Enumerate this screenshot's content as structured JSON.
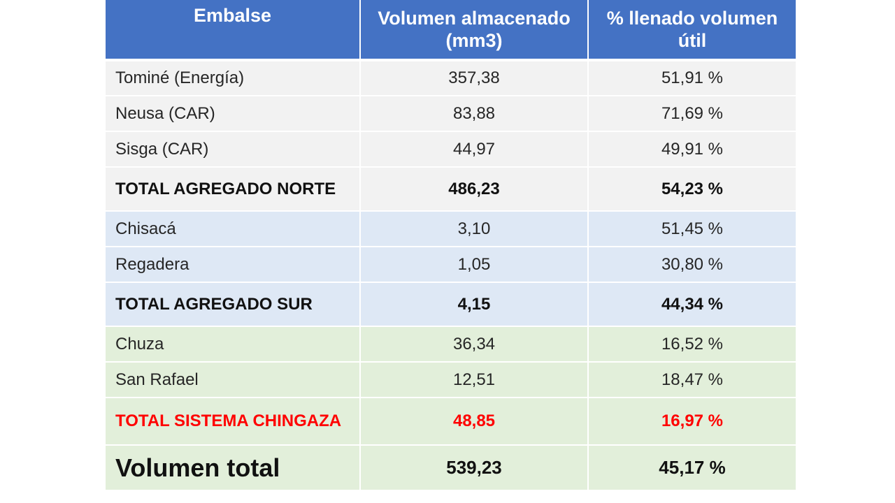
{
  "table": {
    "headers": [
      "Embalse",
      "Volumen almacenado (mm3)",
      "% llenado volumen útil"
    ],
    "header_color": "#4472c4",
    "groups": {
      "norte": {
        "row_color": "#f2f2f2"
      },
      "sur": {
        "row_color": "#dee8f5"
      },
      "chingaza": {
        "row_color": "#e2efda",
        "total_text_color": "#ff0000"
      }
    },
    "rows": [
      {
        "embalse": "Tominé (Energía)",
        "volumen": "357,38",
        "llenado": "51,91 %"
      },
      {
        "embalse": "Neusa (CAR)",
        "volumen": "83,88",
        "llenado": "71,69 %"
      },
      {
        "embalse": "Sisga (CAR)",
        "volumen": "44,97",
        "llenado": "49,91 %"
      },
      {
        "embalse": "TOTAL AGREGADO NORTE",
        "volumen": "486,23",
        "llenado": "54,23 %"
      },
      {
        "embalse": "Chisacá",
        "volumen": "3,10",
        "llenado": "51,45 %"
      },
      {
        "embalse": "Regadera",
        "volumen": "1,05",
        "llenado": "30,80 %"
      },
      {
        "embalse": "TOTAL AGREGADO SUR",
        "volumen": "4,15",
        "llenado": "44,34 %"
      },
      {
        "embalse": "Chuza",
        "volumen": "36,34",
        "llenado": "16,52 %"
      },
      {
        "embalse": "San Rafael",
        "volumen": "12,51",
        "llenado": "18,47 %"
      },
      {
        "embalse": "TOTAL SISTEMA CHINGAZA",
        "volumen": "48,85",
        "llenado": "16,97 %"
      },
      {
        "embalse": "Volumen total",
        "volumen": "539,23",
        "llenado": "45,17 %"
      }
    ]
  }
}
